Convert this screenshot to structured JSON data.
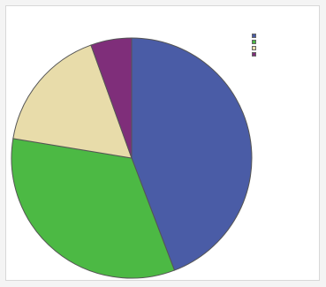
{
  "chart_data": {
    "type": "pie",
    "title": "",
    "categories": [
      "",
      "",
      "",
      ""
    ],
    "values": [
      44.2,
      33.4,
      16.9,
      5.5
    ],
    "colors": [
      "#4a5ca6",
      "#4cb944",
      "#e8dcaa",
      "#7f2e7a"
    ],
    "slice_border_color": "#555555",
    "legend": "top-right",
    "start_angle": "12 o'clock",
    "direction": "clockwise"
  }
}
